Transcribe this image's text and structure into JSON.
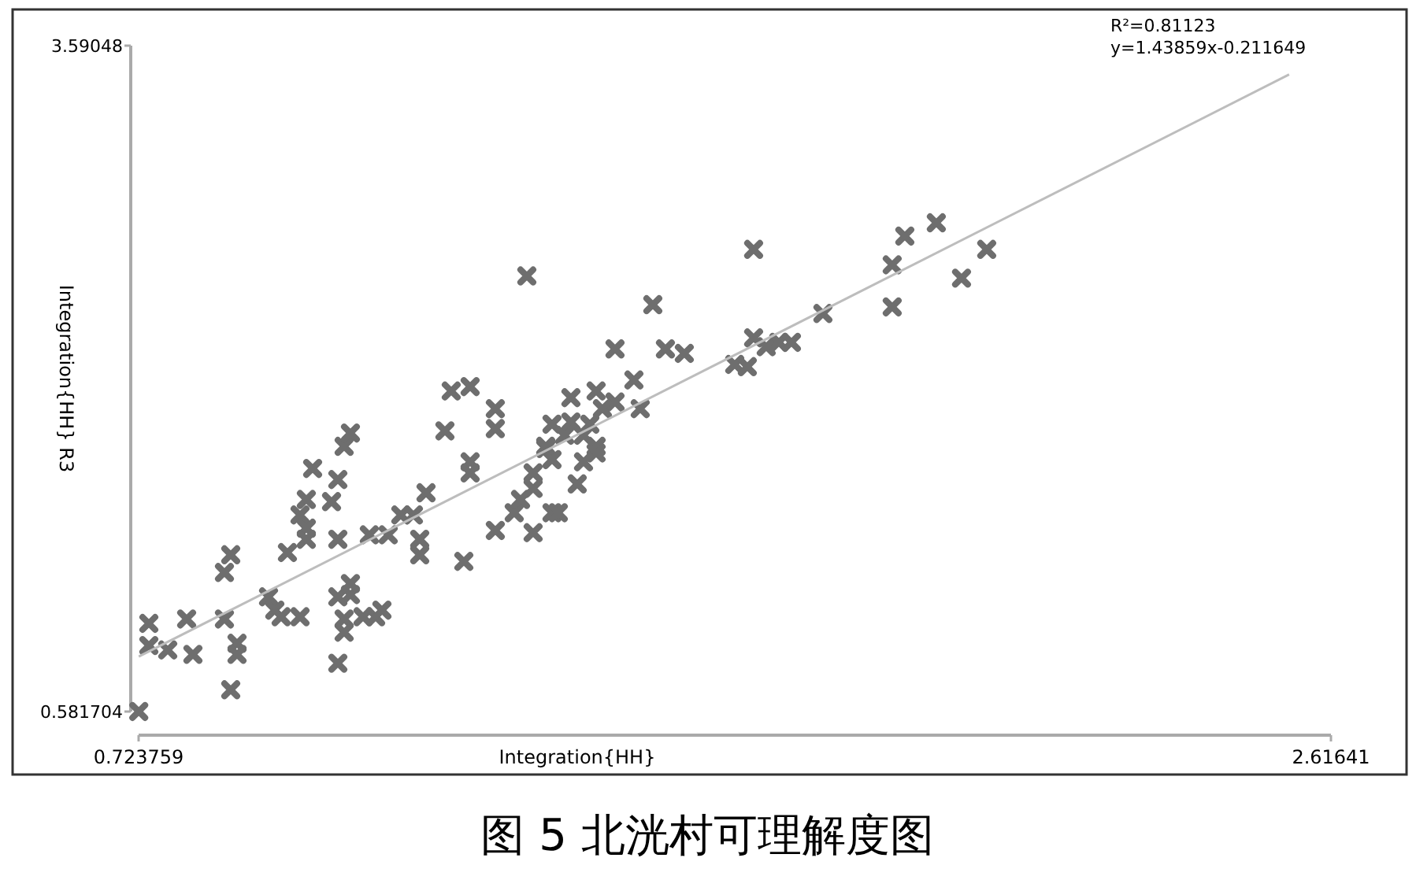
{
  "chart_data": {
    "type": "scatter",
    "title": "图 5 北洸村可理解度图",
    "xlabel": "Integration{HH}",
    "ylabel": "Integration{HH} R3",
    "xlim": [
      0.723759,
      2.61641
    ],
    "ylim": [
      0.581704,
      3.59048
    ],
    "xticks": [
      0.723759,
      2.61641
    ],
    "yticks": [
      0.581704,
      3.59048
    ],
    "marker": "cross",
    "annotations": [
      "R²=0.81123",
      "y=1.43859x-0.211649"
    ],
    "series": [
      {
        "type": "scatter",
        "color": "#6e6e6e",
        "x": [
          0.724,
          0.74,
          0.74,
          0.77,
          0.8,
          0.81,
          0.86,
          0.87,
          0.86,
          0.88,
          0.88,
          0.87,
          0.93,
          0.94,
          0.95,
          0.98,
          0.96,
          1.0,
          0.99,
          0.98,
          0.99,
          0.99,
          1.03,
          1.04,
          1.05,
          1.06,
          1.04,
          1.04,
          1.06,
          1.06,
          1.05,
          1.05,
          1.04,
          1.08,
          1.1,
          1.11,
          1.09,
          1.12,
          1.14,
          1.16,
          1.17,
          1.17,
          1.18,
          1.21,
          1.22,
          1.25,
          1.29,
          1.29,
          1.25,
          1.25,
          1.24,
          1.29,
          1.32,
          1.33,
          1.35,
          1.37,
          1.38,
          1.35,
          1.38,
          1.34,
          1.54,
          1.48,
          1.56,
          1.59,
          1.51,
          1.41,
          1.45,
          1.48,
          1.46,
          1.52,
          1.41,
          1.44,
          1.4,
          1.43,
          1.37,
          1.38,
          1.45,
          1.45,
          1.43,
          1.35,
          1.42,
          1.39,
          1.7,
          1.7,
          1.67,
          1.69,
          1.72,
          1.74,
          1.76,
          1.81,
          1.92,
          1.94,
          1.92,
          1.99,
          2.03,
          2.07
        ],
        "values": [
          0.582,
          0.98,
          0.88,
          0.86,
          1.0,
          0.84,
          1.0,
          1.29,
          1.21,
          0.89,
          0.84,
          0.68,
          1.1,
          1.04,
          1.01,
          1.01,
          1.3,
          1.68,
          1.54,
          1.47,
          1.41,
          1.36,
          1.53,
          1.63,
          1.78,
          1.84,
          1.36,
          1.1,
          1.11,
          1.16,
          1.0,
          0.94,
          0.8,
          1.01,
          1.01,
          1.04,
          1.38,
          1.38,
          1.47,
          1.47,
          1.36,
          1.29,
          1.57,
          1.85,
          2.03,
          2.05,
          1.95,
          1.86,
          1.71,
          1.66,
          1.26,
          1.4,
          1.48,
          1.54,
          1.66,
          1.77,
          1.88,
          1.39,
          1.48,
          2.55,
          2.42,
          2.22,
          2.22,
          2.2,
          2.08,
          2.0,
          2.03,
          1.98,
          1.95,
          1.95,
          1.89,
          1.88,
          1.83,
          1.83,
          1.78,
          1.72,
          1.78,
          1.75,
          1.71,
          1.59,
          1.61,
          1.48,
          2.67,
          2.27,
          2.15,
          2.14,
          2.23,
          2.25,
          2.25,
          2.38,
          2.6,
          2.73,
          2.41,
          2.79,
          2.54,
          2.67
        ]
      },
      {
        "type": "line",
        "color": "#bdbdbd",
        "x": [
          0.724,
          2.55
        ],
        "marker": "none",
        "values": [
          0.83,
          3.46
        ]
      }
    ]
  }
}
